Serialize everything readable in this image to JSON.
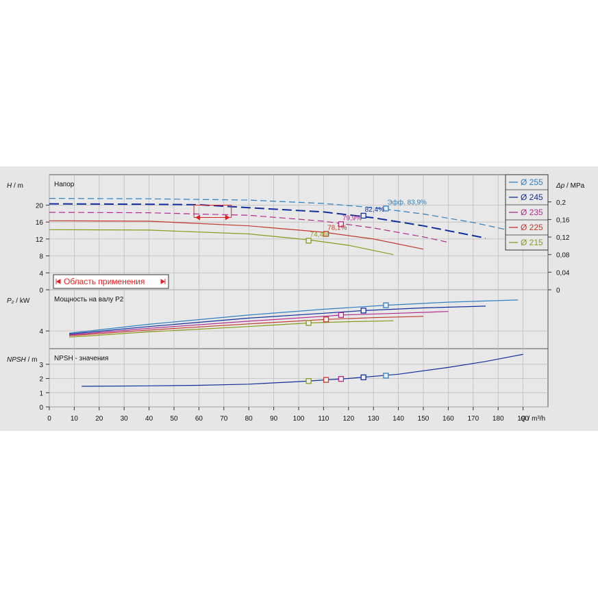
{
  "chart_data": {
    "type": "line",
    "x_axis": {
      "label_italic": "Q",
      "label_unit": "m³/h",
      "range": [
        0,
        200
      ],
      "ticks": [
        0,
        10,
        20,
        30,
        40,
        50,
        60,
        70,
        80,
        90,
        100,
        110,
        120,
        130,
        140,
        150,
        160,
        170,
        180,
        190
      ]
    },
    "panels": [
      {
        "id": "head",
        "title": "Напор",
        "ylabel_italic": "H",
        "ylabel_unit": "m",
        "ylim": [
          0,
          27.2
        ],
        "yticks": [
          0,
          4,
          8,
          12,
          16,
          20
        ],
        "right_axis": {
          "label_italic": "Δp",
          "label_unit": "MPa",
          "ticks": [
            "0",
            "0,04",
            "0,08",
            "0,12",
            "0,16",
            "0,2"
          ]
        },
        "series": [
          {
            "name": "Ø 255",
            "color": "#2f7fc1",
            "dash": "long",
            "x": [
              0,
              40,
              80,
              110,
              130,
              150,
              170,
              188
            ],
            "y": [
              21.6,
              21.5,
              21.2,
              20.4,
              19.4,
              17.9,
              15.9,
              13.6
            ]
          },
          {
            "name": "Ø 245",
            "color": "#102f9c",
            "dash": "heavy",
            "x": [
              0,
              40,
              60,
              80,
              110,
              130,
              150,
              175
            ],
            "y": [
              20.3,
              20.2,
              20.1,
              19.4,
              18.4,
              17.0,
              15.1,
              12.2
            ]
          },
          {
            "name": "Ø 235",
            "color": "#b2298e",
            "dash": "long",
            "x": [
              0,
              40,
              80,
              110,
              130,
              150,
              160
            ],
            "y": [
              18.3,
              18.2,
              17.6,
              16.2,
              14.6,
              12.5,
              11.2
            ]
          },
          {
            "name": "Ø 225",
            "color": "#c0392b",
            "dash": "solid-dash",
            "x": [
              0,
              40,
              80,
              110,
              130,
              150
            ],
            "y": [
              16.3,
              16.2,
              15.1,
              13.6,
              12.0,
              9.6
            ]
          },
          {
            "name": "Ø 215",
            "color": "#8a9a1c",
            "dash": "solid-dash",
            "x": [
              0,
              40,
              80,
              104,
              120,
              138
            ],
            "y": [
              14.2,
              14.1,
              13.2,
              11.8,
              10.5,
              8.3
            ]
          }
        ],
        "efficiency_points": [
          {
            "label": "Эфф.  83,9%",
            "color": "#2f7fc1",
            "x": 135,
            "y": 19.2
          },
          {
            "label": "82,4%",
            "color": "#102f9c",
            "x": 126,
            "y": 17.5
          },
          {
            "label": "79,9%",
            "color": "#b2298e",
            "x": 117,
            "y": 15.5
          },
          {
            "label": "78,1%",
            "color": "#c0392b",
            "x": 111,
            "y": 13.2
          },
          {
            "label": "74,4%",
            "color": "#8a9a1c",
            "x": 104,
            "y": 11.6
          }
        ],
        "operating_range": {
          "label": "Область применения",
          "x_start": 58,
          "x_end": 73,
          "y": 20.0
        }
      },
      {
        "id": "power",
        "title": "Мощность на валу P2",
        "ylabel_italic": "P₂",
        "ylabel_unit": "kW",
        "ylim": [
          0,
          13.3
        ],
        "yticks": [
          4
        ],
        "series": [
          {
            "name": "Ø 255",
            "color": "#2f7fc1",
            "x": [
              8,
              40,
              80,
              110,
              135,
              160,
              188
            ],
            "y": [
              3.5,
              5.5,
              7.6,
              8.9,
              9.8,
              10.5,
              11.0
            ]
          },
          {
            "name": "Ø 245",
            "color": "#102f9c",
            "x": [
              8,
              40,
              80,
              110,
              126,
              150,
              175
            ],
            "y": [
              3.3,
              5.0,
              6.9,
              8.0,
              8.6,
              9.2,
              9.6
            ]
          },
          {
            "name": "Ø 235",
            "color": "#b2298e",
            "x": [
              8,
              40,
              80,
              110,
              117,
              140,
              160
            ],
            "y": [
              3.1,
              4.6,
              6.2,
              7.3,
              7.6,
              8.0,
              8.4
            ]
          },
          {
            "name": "Ø 225",
            "color": "#c0392b",
            "x": [
              8,
              40,
              80,
              111,
              130,
              150
            ],
            "y": [
              2.9,
              4.2,
              5.6,
              6.6,
              7.0,
              7.3
            ]
          },
          {
            "name": "Ø 215",
            "color": "#8a9a1c",
            "x": [
              8,
              40,
              80,
              104,
              120,
              138
            ],
            "y": [
              2.6,
              3.8,
              5.0,
              5.8,
              6.1,
              6.3
            ]
          }
        ],
        "markers": [
          {
            "color": "#2f7fc1",
            "x": 135,
            "y": 9.8
          },
          {
            "color": "#102f9c",
            "x": 126,
            "y": 8.6
          },
          {
            "color": "#b2298e",
            "x": 117,
            "y": 7.6
          },
          {
            "color": "#c0392b",
            "x": 111,
            "y": 6.6
          },
          {
            "color": "#8a9a1c",
            "x": 104,
            "y": 5.8
          }
        ]
      },
      {
        "id": "npsh",
        "title": "NPSH - значения",
        "ylabel_italic": "NPSH",
        "ylabel_unit": "m",
        "ylim": [
          0,
          4.1
        ],
        "yticks": [
          0,
          1,
          2,
          3
        ],
        "series": [
          {
            "name": "NPSH",
            "color": "#102f9c",
            "x": [
              13,
              40,
              60,
              80,
              100,
              120,
              140,
              160,
              175,
              190
            ],
            "y": [
              1.45,
              1.48,
              1.52,
              1.6,
              1.78,
              2.0,
              2.3,
              2.78,
              3.2,
              3.7
            ]
          }
        ],
        "markers": [
          {
            "color": "#2f7fc1",
            "x": 135,
            "y": 2.2
          },
          {
            "color": "#102f9c",
            "x": 126,
            "y": 2.08
          },
          {
            "color": "#b2298e",
            "x": 117,
            "y": 1.97
          },
          {
            "color": "#c0392b",
            "x": 111,
            "y": 1.9
          },
          {
            "color": "#8a9a1c",
            "x": 104,
            "y": 1.82
          }
        ]
      }
    ],
    "legend": {
      "placement": "top-right",
      "entries": [
        "Ø 255",
        "Ø 245",
        "Ø 235",
        "Ø 225",
        "Ø 215"
      ]
    }
  }
}
